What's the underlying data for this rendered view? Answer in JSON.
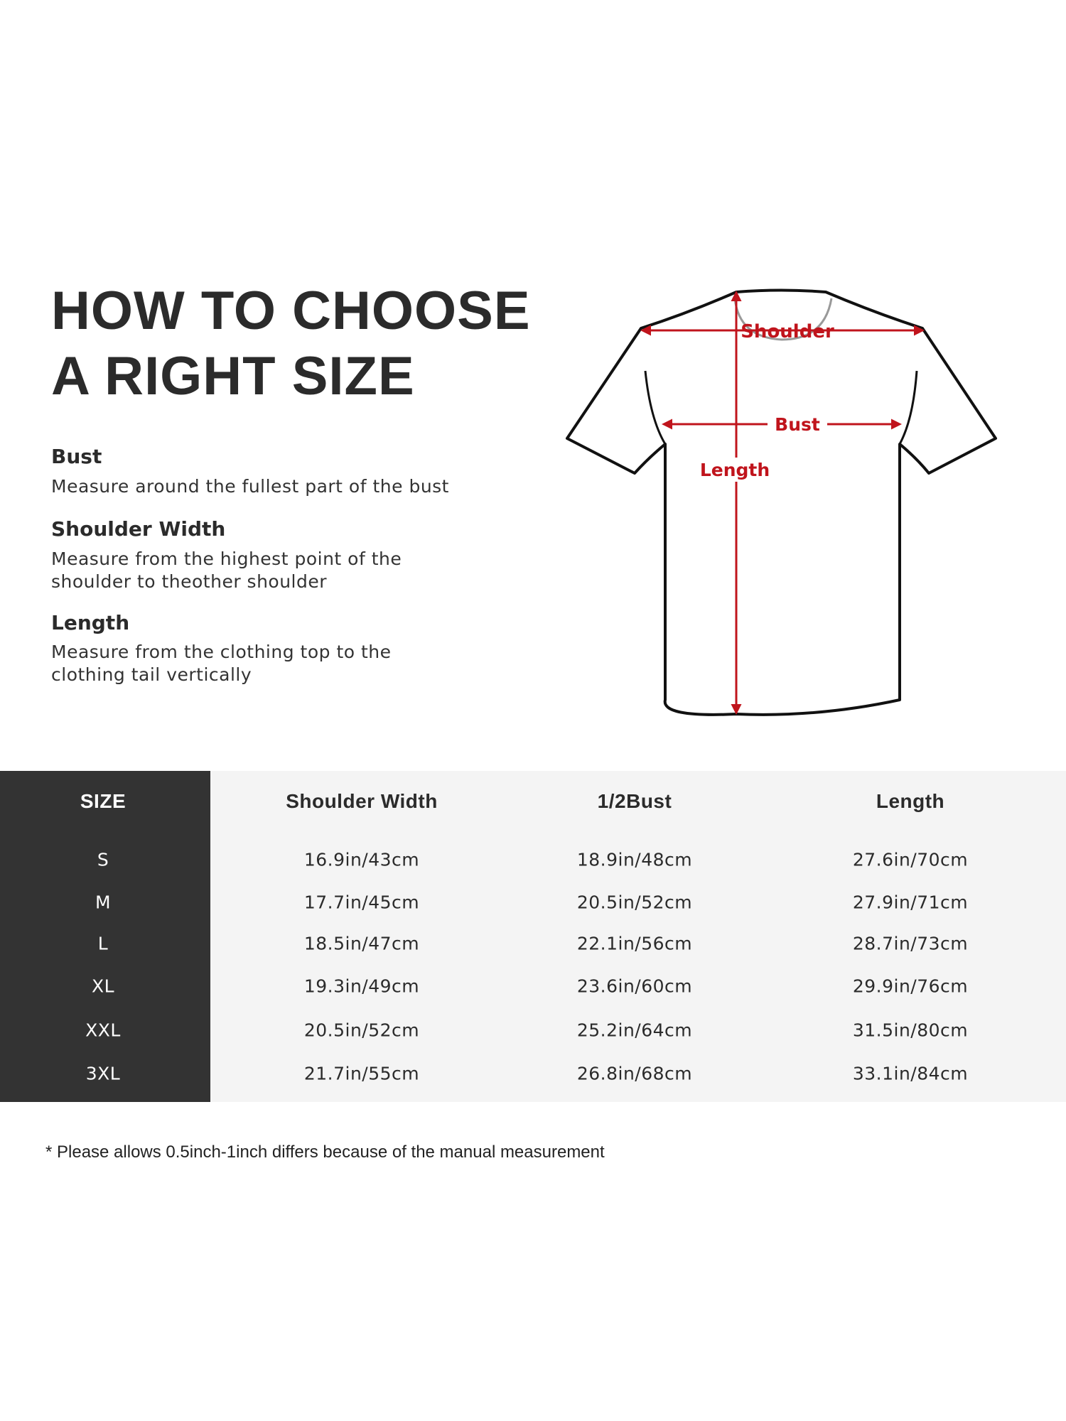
{
  "title": {
    "line1": "HOW TO CHOOSE",
    "line2": "A RIGHT SIZE"
  },
  "guide": [
    {
      "heading": "Bust",
      "lines": [
        "Measure around the fullest part of the bust"
      ]
    },
    {
      "heading": "Shoulder Width",
      "lines": [
        "Measure from the highest point of the",
        "shoulder to theother shoulder"
      ]
    },
    {
      "heading": "Length",
      "lines": [
        "Measure from the clothing top to the",
        "clothing tail vertically"
      ]
    }
  ],
  "diagram": {
    "shoulder_label": "Shoulder",
    "bust_label": "Bust",
    "length_label": "Length",
    "accent_color": "#c0141c"
  },
  "table": {
    "headers": [
      "SIZE",
      "Shoulder Width",
      "1/2Bust",
      "Length"
    ],
    "rows": [
      [
        "S",
        "16.9in/43cm",
        "18.9in/48cm",
        "27.6in/70cm"
      ],
      [
        "M",
        "17.7in/45cm",
        "20.5in/52cm",
        "27.9in/71cm"
      ],
      [
        "L",
        "18.5in/47cm",
        "22.1in/56cm",
        "28.7in/73cm"
      ],
      [
        "XL",
        "19.3in/49cm",
        "23.6in/60cm",
        "29.9in/76cm"
      ],
      [
        "XXL",
        "20.5in/52cm",
        "25.2in/64cm",
        "31.5in/80cm"
      ],
      [
        "3XL",
        "21.7in/55cm",
        "26.8in/68cm",
        "33.1in/84cm"
      ]
    ]
  },
  "footnote": "* Please allows 0.5inch-1inch differs because of the  manual measurement"
}
